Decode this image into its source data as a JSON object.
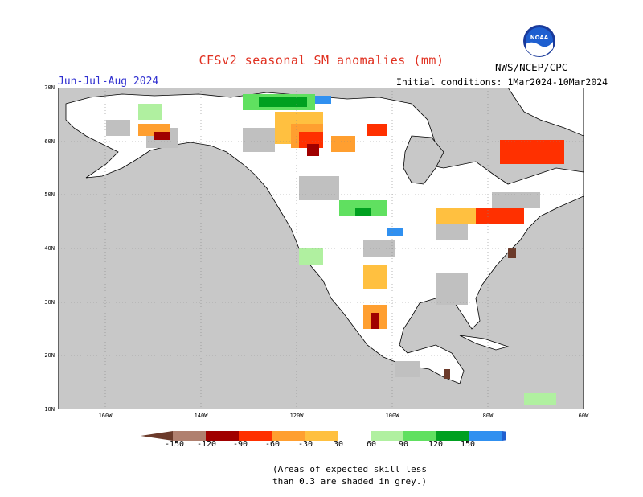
{
  "title": "CFSv2 seasonal SM anomalies (mm)",
  "period": "Jun-Jul-Aug 2024",
  "initial_conditions": "Initial conditions: 1Mar2024-10Mar2024",
  "agency": "NWS/NCEP/CPC",
  "logo_text": "NOAA",
  "latitude_labels": [
    "70N",
    "60N",
    "50N",
    "40N",
    "30N",
    "20N",
    "10N"
  ],
  "longitude_labels": [
    "160W",
    "140W",
    "120W",
    "100W",
    "80W",
    "60W"
  ],
  "legend": {
    "ticks": [
      "-150",
      "-120",
      "-90",
      "-60",
      "-30",
      "30",
      "60",
      "90",
      "120",
      "150"
    ],
    "colors": [
      "#6b3a2a",
      "#b0806f",
      "#a00000",
      "#ff3000",
      "#ff9f30",
      "#ffc040",
      "#ffffff",
      "#b0f0a0",
      "#60e060",
      "#00a020",
      "#3090f0",
      "#2060d0"
    ]
  },
  "note": [
    "(Areas of expected skill less",
    "than 0.3 are shaded in grey.)"
  ],
  "colors": {
    "ocean": "#c8c8c8",
    "land": "#ffffff",
    "skill_grey": "#c0c0c0",
    "title": "#e03020",
    "period": "#3030d0"
  }
}
